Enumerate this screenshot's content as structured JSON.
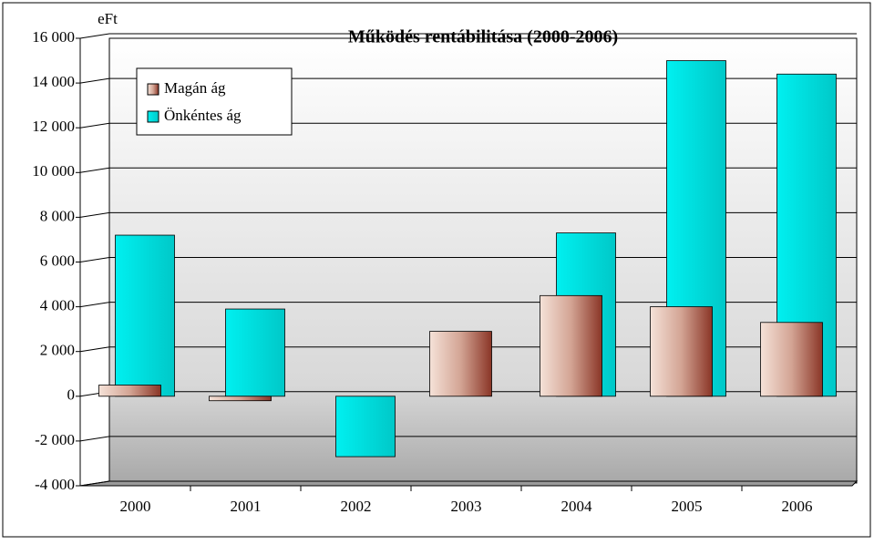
{
  "chart_data": {
    "type": "bar",
    "title": "Működés rentábilitása (2000-2006)",
    "y_label": "eFt",
    "categories": [
      "2000",
      "2001",
      "2002",
      "2003",
      "2004",
      "2005",
      "2006"
    ],
    "series": [
      {
        "name": "Önkéntes ág",
        "color": "#19e6e6",
        "values": [
          7200,
          3900,
          -2700,
          0,
          7300,
          15000,
          14400
        ]
      },
      {
        "name": "Magán ág",
        "color": "#c9877a",
        "values": [
          500,
          -200,
          0,
          2900,
          4500,
          4000,
          3300
        ]
      }
    ],
    "ylim": [
      -4000,
      16000
    ],
    "yticks": [
      {
        "value": -4000,
        "label": "-4 000"
      },
      {
        "value": -2000,
        "label": "-2 000"
      },
      0,
      {
        "value": 2000,
        "label": "2 000"
      },
      {
        "value": 4000,
        "label": "4 000"
      },
      {
        "value": 6000,
        "label": "6 000"
      },
      {
        "value": 8000,
        "label": "8 000"
      },
      {
        "value": 10000,
        "label": "10 000"
      },
      {
        "value": 12000,
        "label": "12 000"
      },
      {
        "value": 14000,
        "label": "14 000"
      },
      {
        "value": 16000,
        "label": "16 000"
      }
    ],
    "grid": true
  }
}
